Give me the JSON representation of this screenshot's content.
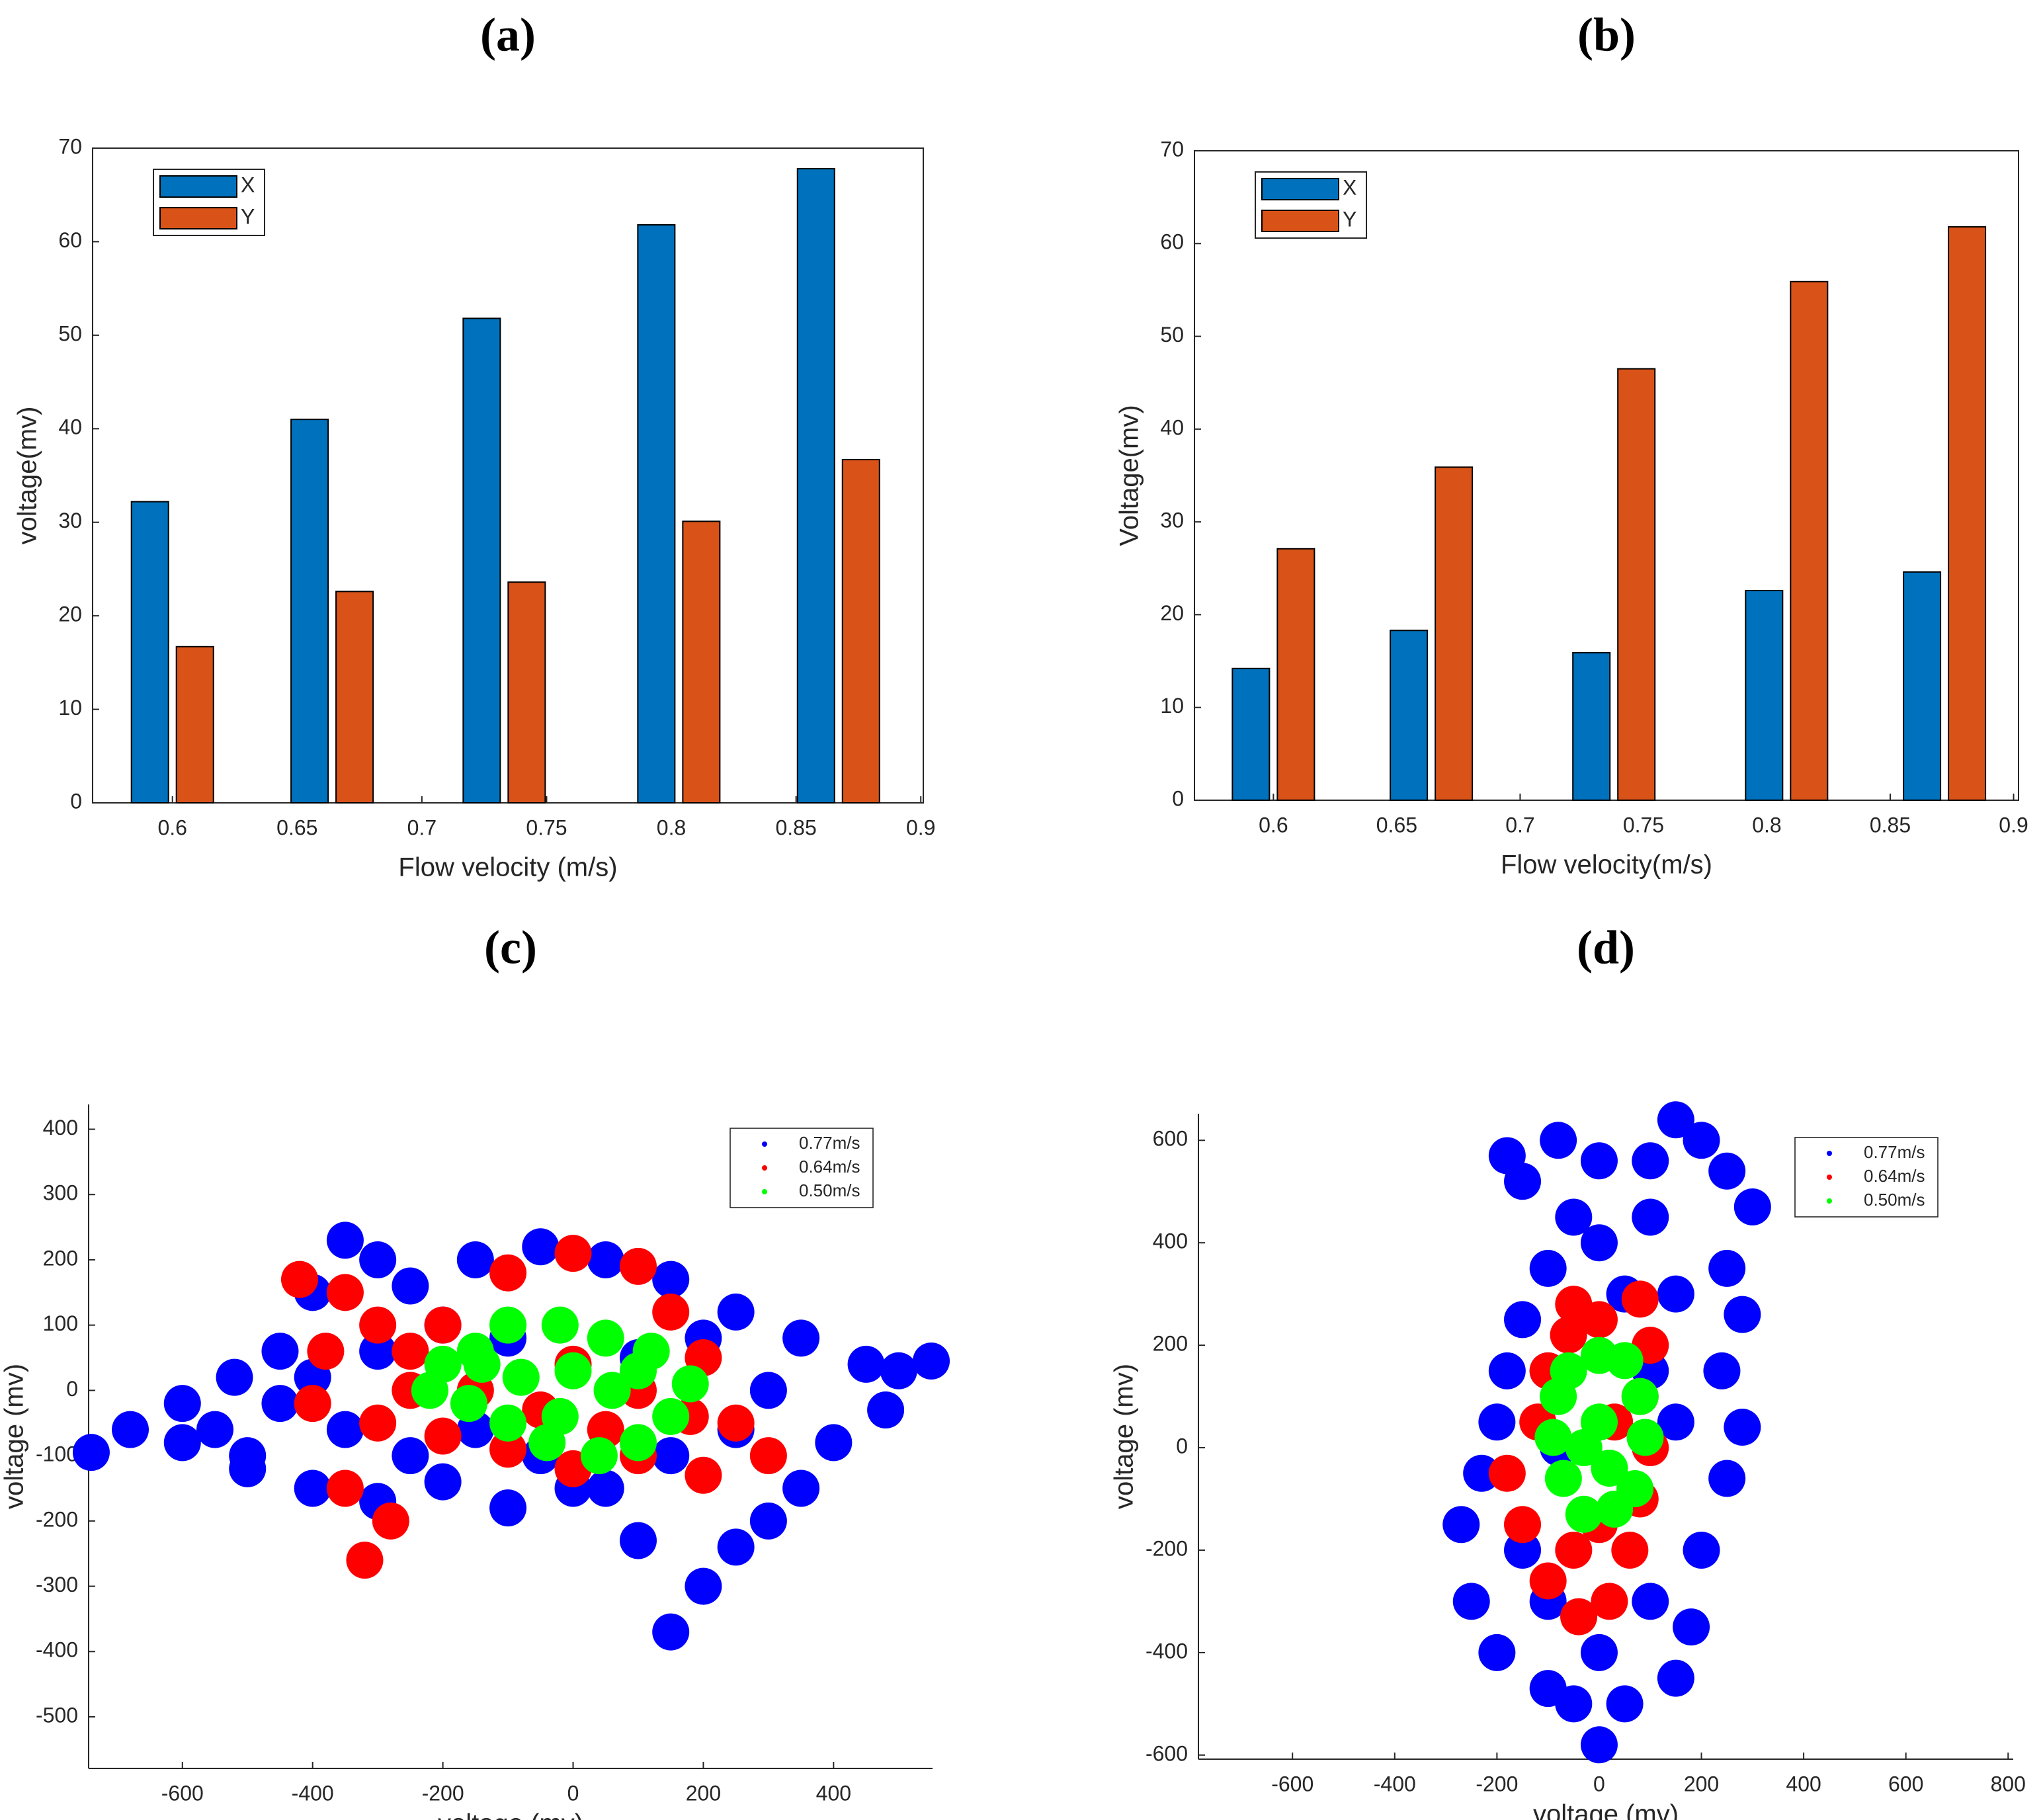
{
  "chart_data": [
    {
      "type": "bar",
      "title": "(a)",
      "xlabel": "Flow velocity (m/s)",
      "ylabel": "voltage(mv)",
      "x": [
        0.6,
        0.664,
        0.733,
        0.803,
        0.867
      ],
      "series": [
        {
          "name": "X",
          "color": "#0072bd",
          "values": [
            32.2,
            41,
            51.8,
            61.8,
            67.8
          ]
        },
        {
          "name": "Y",
          "color": "#d95319",
          "values": [
            16.7,
            22.6,
            23.6,
            30.1,
            36.7
          ]
        }
      ],
      "xlim": [
        0.568,
        0.901
      ],
      "xticks": [
        0.6,
        0.65,
        0.7,
        0.75,
        0.8,
        0.85,
        0.9
      ],
      "ylim": [
        0,
        70
      ],
      "yticks": [
        0,
        10,
        20,
        30,
        40,
        50,
        60,
        70
      ],
      "legend": "upper left"
    },
    {
      "type": "bar",
      "title": "(b)",
      "xlabel": "Flow velocity(m/s)",
      "ylabel": "Voltage(mv)",
      "x": [
        0.6,
        0.664,
        0.738,
        0.808,
        0.872
      ],
      "series": [
        {
          "name": "X",
          "color": "#0072bd",
          "values": [
            14.2,
            18.3,
            15.9,
            22.6,
            24.6
          ]
        },
        {
          "name": "Y",
          "color": "#d95319",
          "values": [
            27.1,
            35.9,
            46.5,
            55.9,
            61.8
          ]
        }
      ],
      "xlim": [
        0.568,
        0.902
      ],
      "xticks": [
        0.6,
        0.65,
        0.7,
        0.75,
        0.8,
        0.85,
        0.9
      ],
      "ylim": [
        0,
        70
      ],
      "yticks": [
        0,
        10,
        20,
        30,
        40,
        50,
        60,
        70
      ],
      "legend": "upper left"
    },
    {
      "type": "scatter",
      "title": "(c)",
      "xlabel": "voltage (mv)",
      "ylabel": "voltage (mv)",
      "series": [
        {
          "name": "0.77m/s",
          "color": "#0000ff",
          "x": [
            -740,
            -680,
            -600,
            -520,
            -450,
            -400,
            -350,
            -300,
            -250,
            -150,
            -50,
            50,
            150,
            250,
            350,
            450,
            500,
            550,
            480,
            400,
            350,
            300,
            250,
            200,
            150,
            100,
            0,
            -100,
            -200,
            -300,
            -400,
            -500,
            -550,
            -450,
            -350,
            -250,
            -150,
            -50,
            50,
            150,
            250,
            300,
            200,
            100,
            -100,
            -200,
            -300,
            -400,
            -500,
            -600
          ],
          "y": [
            -95,
            -60,
            -20,
            20,
            60,
            150,
            230,
            200,
            160,
            200,
            220,
            200,
            170,
            120,
            80,
            40,
            30,
            45,
            -30,
            -80,
            -150,
            -200,
            -240,
            -300,
            -370,
            -230,
            -150,
            -180,
            -140,
            -170,
            -150,
            -100,
            -60,
            -20,
            -60,
            -100,
            -60,
            -100,
            -150,
            -100,
            -60,
            0,
            80,
            50,
            80,
            100,
            60,
            20,
            -120,
            -80
          ]
        },
        {
          "name": "0.64m/s",
          "color": "#ff0000",
          "x": [
            -420,
            -350,
            -300,
            -250,
            -200,
            -100,
            0,
            100,
            150,
            200,
            250,
            300,
            200,
            100,
            0,
            -100,
            -200,
            -300,
            -350,
            -320,
            -280,
            -400,
            -380,
            -250,
            -150,
            0,
            100,
            180,
            50,
            -50
          ],
          "y": [
            170,
            150,
            100,
            60,
            100,
            180,
            210,
            190,
            120,
            50,
            -50,
            -100,
            -130,
            -100,
            -120,
            -90,
            -70,
            -50,
            -150,
            -260,
            -200,
            -20,
            60,
            0,
            0,
            40,
            0,
            -40,
            -60,
            -30
          ]
        },
        {
          "name": "0.50m/s",
          "color": "#00ff00",
          "x": [
            -220,
            -200,
            -150,
            -100,
            -20,
            50,
            120,
            180,
            150,
            100,
            40,
            -40,
            -100,
            -160,
            -80,
            0,
            60,
            -20,
            100,
            -140
          ],
          "y": [
            0,
            40,
            60,
            100,
            100,
            80,
            60,
            10,
            -40,
            -80,
            -100,
            -80,
            -50,
            -20,
            20,
            30,
            0,
            -40,
            30,
            40
          ]
        }
      ],
      "xlim": [
        -744,
        552
      ],
      "xticks": [
        -600,
        -400,
        -200,
        0,
        200,
        400
      ],
      "ylim": [
        -579,
        438
      ],
      "yticks": [
        -500,
        -400,
        -300,
        -200,
        -100,
        0,
        100,
        200,
        300,
        400
      ],
      "legend": "upper right"
    },
    {
      "type": "scatter",
      "title": "(d)",
      "xlabel": "voltage (mv)",
      "ylabel": "voltage (mv)",
      "series": [
        {
          "name": "0.77m/s",
          "color": "#0000ff",
          "x": [
            -180,
            -150,
            -80,
            0,
            100,
            150,
            200,
            250,
            300,
            250,
            280,
            240,
            280,
            250,
            200,
            180,
            150,
            50,
            0,
            -50,
            -100,
            -200,
            -250,
            -270,
            -230,
            -200,
            -180,
            -150,
            -100,
            -50,
            0,
            100,
            50,
            150,
            100,
            -100,
            -150,
            100,
            -100,
            0,
            150,
            -80
          ],
          "y": [
            570,
            520,
            600,
            560,
            560,
            640,
            600,
            540,
            470,
            350,
            260,
            150,
            40,
            -60,
            -200,
            -350,
            -450,
            -500,
            -580,
            -500,
            -470,
            -400,
            -300,
            -150,
            -50,
            50,
            150,
            250,
            350,
            450,
            400,
            450,
            300,
            300,
            150,
            150,
            -200,
            -300,
            -300,
            -400,
            50,
            0
          ]
        },
        {
          "name": "0.64m/s",
          "color": "#ff0000",
          "x": [
            -50,
            0,
            80,
            100,
            80,
            100,
            80,
            60,
            20,
            -40,
            -100,
            -150,
            -180,
            -120,
            -100,
            -60,
            0,
            -50,
            30
          ],
          "y": [
            280,
            250,
            290,
            200,
            100,
            0,
            -100,
            -200,
            -300,
            -330,
            -260,
            -150,
            -50,
            50,
            150,
            220,
            -150,
            -200,
            50
          ]
        },
        {
          "name": "0.50m/s",
          "color": "#00ff00",
          "x": [
            -60,
            0,
            50,
            80,
            90,
            70,
            30,
            -30,
            -70,
            -90,
            -80,
            0,
            20,
            -30
          ],
          "y": [
            150,
            180,
            170,
            100,
            20,
            -80,
            -120,
            -130,
            -60,
            20,
            100,
            50,
            -40,
            0
          ]
        }
      ],
      "xlim": [
        -784,
        810
      ],
      "xticks": [
        -600,
        -400,
        -200,
        0,
        200,
        400,
        600,
        800
      ],
      "ylim": [
        -608,
        652
      ],
      "yticks": [
        -600,
        -400,
        -200,
        0,
        200,
        400,
        600
      ],
      "legend": "upper right"
    }
  ]
}
